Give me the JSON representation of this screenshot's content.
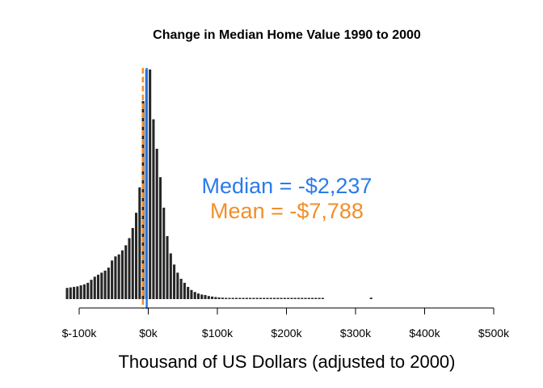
{
  "chart_data": {
    "type": "bar",
    "subtype": "histogram",
    "title": "Change in Median Home Value 1990 to 2000",
    "xlabel": "Thousand of US Dollars (adjusted to 2000)",
    "ylabel": "",
    "bin_width_k": 5,
    "xlim_k": [
      -120,
      500
    ],
    "x_ticks": [
      -100,
      0,
      100,
      200,
      300,
      400,
      500
    ],
    "x_tick_labels": [
      "$-100k",
      "$0k",
      "$100k",
      "$200k",
      "$300k",
      "$400k",
      "$500k"
    ],
    "y_axis_shown": false,
    "grid": false,
    "bar_color": "#262626",
    "bins_start_k": [
      -120,
      -115,
      -110,
      -105,
      -100,
      -95,
      -90,
      -85,
      -80,
      -75,
      -70,
      -65,
      -60,
      -55,
      -50,
      -45,
      -40,
      -35,
      -30,
      -25,
      -20,
      -15,
      -10,
      -5,
      0,
      5,
      10,
      15,
      20,
      25,
      30,
      35,
      40,
      45,
      50,
      55,
      60,
      65,
      70,
      75,
      80,
      85,
      90,
      95,
      100,
      105,
      110,
      115,
      120,
      125,
      130,
      135,
      140,
      145,
      150,
      155,
      160,
      165,
      170,
      175,
      180,
      185,
      190,
      195,
      200,
      205,
      210,
      215,
      220,
      225,
      230,
      235,
      240,
      245,
      250,
      255,
      260,
      265,
      270,
      275,
      280,
      285,
      290,
      295,
      300,
      305,
      310,
      315,
      320
    ],
    "counts": [
      110,
      115,
      120,
      125,
      135,
      145,
      160,
      190,
      220,
      240,
      260,
      280,
      310,
      380,
      420,
      440,
      480,
      530,
      600,
      700,
      850,
      1100,
      1950,
      2260,
      2260,
      1770,
      1480,
      1200,
      900,
      620,
      450,
      340,
      260,
      200,
      160,
      120,
      90,
      70,
      55,
      45,
      40,
      30,
      25,
      20,
      16,
      14,
      12,
      10,
      9,
      8,
      7,
      6,
      5,
      5,
      4,
      4,
      3,
      3,
      3,
      2,
      2,
      2,
      2,
      2,
      2,
      1,
      1,
      1,
      1,
      1,
      1,
      1,
      1,
      1,
      1,
      0,
      0,
      0,
      0,
      0,
      0,
      0,
      0,
      0,
      0,
      0,
      0,
      0,
      14
    ],
    "reference_lines": [
      {
        "name": "Median",
        "value_k": -2.237,
        "color": "#2b7bea",
        "style": "solid"
      },
      {
        "name": "Mean",
        "value_k": -7.788,
        "color": "#f28e2b",
        "style": "dashed"
      }
    ],
    "annotations": [
      {
        "text": "Median = -$2,237",
        "color": "#2b7bea"
      },
      {
        "text": "Mean = -$7,788",
        "color": "#f28e2b"
      }
    ]
  }
}
